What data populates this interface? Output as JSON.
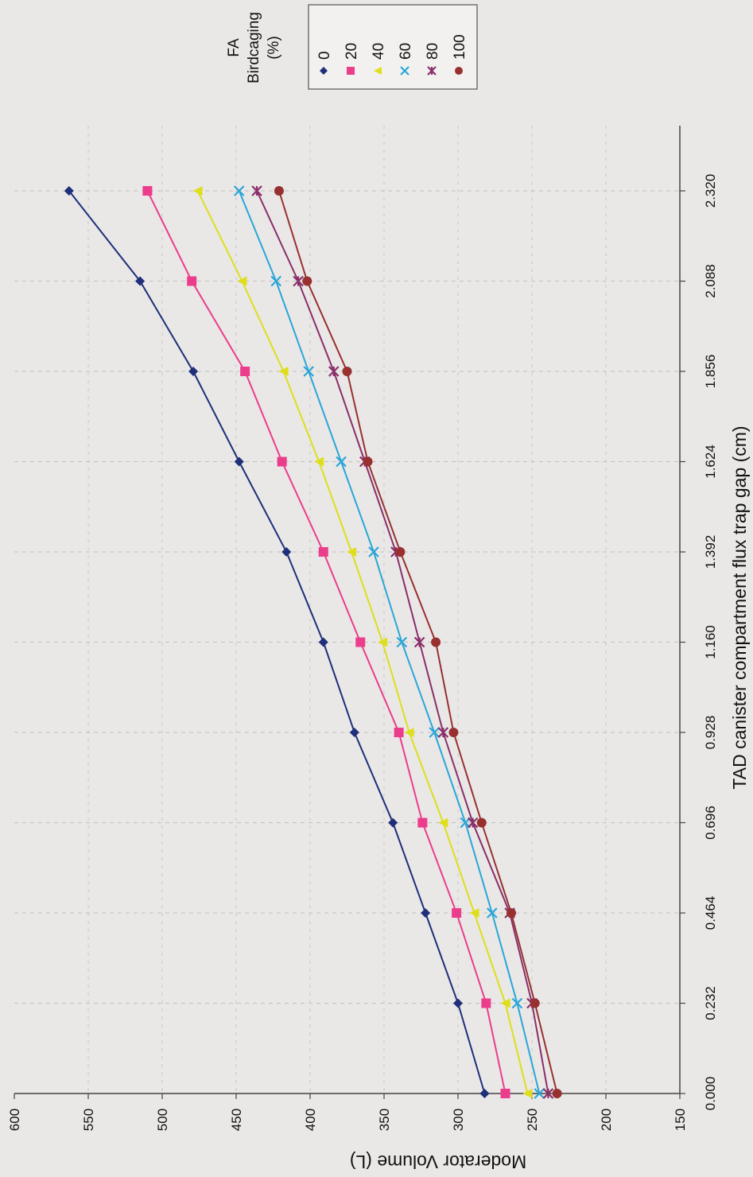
{
  "chart_data": {
    "type": "line",
    "orientation": "rotated-90-clockwise",
    "title": "",
    "xlabel": "TAD canister compartment flux trap gap (cm)",
    "ylabel": "Moderator Volume (L)",
    "x": [
      0.0,
      0.232,
      0.464,
      0.696,
      0.928,
      1.16,
      1.392,
      1.624,
      1.856,
      2.088,
      2.32
    ],
    "xtick_labels": [
      "0.000",
      "0.232",
      "0.464",
      "0.696",
      "0.928",
      "1.160",
      "1.392",
      "1.624",
      "1.856",
      "2.088",
      "2.320"
    ],
    "ylim": [
      150,
      600
    ],
    "yticks": [
      150,
      200,
      250,
      300,
      350,
      400,
      450,
      500,
      550,
      600
    ],
    "grid": "dashed gridlines at each x tick",
    "legend": {
      "title": "FA Birdcaging (%)",
      "title_lines": [
        "FA",
        "Birdcaging",
        "(%)"
      ],
      "placement": "top-right"
    },
    "series": [
      {
        "name": "0",
        "marker": "diamond",
        "color": "#1f2f7a",
        "values": [
          282,
          300,
          322,
          344,
          370,
          391,
          416,
          448,
          479,
          515,
          563
        ]
      },
      {
        "name": "20",
        "marker": "square",
        "color": "#ec3c8c",
        "values": [
          268,
          281,
          301,
          324,
          340,
          366,
          391,
          419,
          444,
          480,
          510
        ]
      },
      {
        "name": "40",
        "marker": "triangle",
        "color": "#dede1c",
        "values": [
          253,
          268,
          289,
          310,
          333,
          351,
          372,
          394,
          418,
          446,
          476
        ]
      },
      {
        "name": "60",
        "marker": "x",
        "color": "#2aa6d8",
        "values": [
          245,
          260,
          277,
          295,
          316,
          338,
          357,
          379,
          401,
          423,
          448
        ]
      },
      {
        "name": "80",
        "marker": "star",
        "color": "#8a2e6a",
        "values": [
          239,
          250,
          265,
          290,
          310,
          326,
          342,
          363,
          384,
          408,
          436
        ]
      },
      {
        "name": "100",
        "marker": "circle",
        "color": "#983030",
        "values": [
          233,
          248,
          264,
          284,
          303,
          315,
          339,
          361,
          375,
          402,
          421
        ]
      }
    ]
  }
}
